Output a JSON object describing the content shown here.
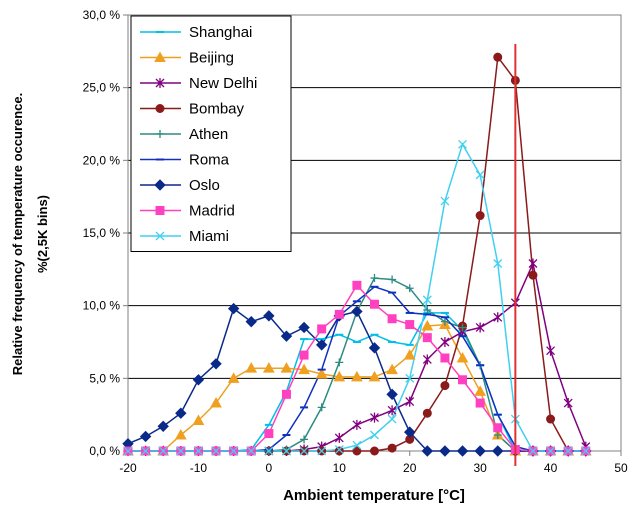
{
  "chart_data": {
    "type": "line",
    "xlabel": "Ambient temperature [°C]",
    "ylabel_line1": "Relative frequency of temperature occurence.",
    "ylabel_line2": "%(2,5K bins)",
    "xlim": [
      -20,
      50
    ],
    "ylim": [
      0,
      30
    ],
    "x_ticks": [
      "-20",
      "-10",
      "0",
      "10",
      "20",
      "30",
      "40",
      "50"
    ],
    "y_ticks": [
      "0,0 %",
      "5,0 %",
      "10,0 %",
      "15,0 %",
      "20,0 %",
      "25,0 %",
      "30,0 %"
    ],
    "grid": "horizontal",
    "legend_placement": "top-left",
    "reference_line_x": 35,
    "reference_line_color": "#e03030",
    "x": [
      -20,
      -17.5,
      -15,
      -12.5,
      -10,
      -7.5,
      -5,
      -2.5,
      0,
      2.5,
      5,
      7.5,
      10,
      12.5,
      15,
      17.5,
      20,
      22.5,
      25,
      27.5,
      30,
      32.5,
      35,
      37.5,
      40,
      42.5,
      45
    ],
    "series": [
      {
        "name": "Shanghai",
        "color": "#00c0e8",
        "marker": "dash",
        "values": [
          0,
          0,
          0,
          0,
          0,
          0,
          0,
          0.1,
          1.8,
          4.1,
          7.7,
          7.7,
          8.0,
          7.5,
          8.0,
          7.5,
          7.3,
          9.5,
          9.5,
          8.3,
          5.9,
          2.5,
          0,
          0,
          0,
          0,
          0
        ]
      },
      {
        "name": "Beijing",
        "color": "#f0a020",
        "marker": "triangle",
        "values": [
          0,
          0,
          0,
          1.1,
          2.1,
          3.3,
          5.0,
          5.7,
          5.7,
          5.7,
          5.6,
          5.3,
          5.1,
          5.1,
          5.1,
          5.6,
          6.6,
          8.6,
          8.7,
          6.4,
          4.1,
          1.1,
          0,
          0,
          0,
          0,
          0
        ]
      },
      {
        "name": "New Delhi",
        "color": "#800080",
        "marker": "star",
        "values": [
          0,
          0,
          0,
          0,
          0,
          0,
          0,
          0,
          0,
          0,
          0.1,
          0.3,
          0.9,
          1.8,
          2.3,
          2.8,
          3.4,
          6.3,
          7.5,
          8.2,
          8.5,
          9.2,
          10.2,
          12.9,
          6.9,
          3.3,
          0.3
        ]
      },
      {
        "name": "Bombay",
        "color": "#8b1a1a",
        "marker": "circle",
        "values": [
          0,
          0,
          0,
          0,
          0,
          0,
          0,
          0,
          0,
          0,
          0,
          0,
          0,
          0,
          0,
          0.2,
          0.8,
          2.6,
          4.5,
          8.6,
          16.2,
          27.1,
          25.5,
          12.1,
          2.2,
          0,
          0
        ]
      },
      {
        "name": "Athen",
        "color": "#2e8b82",
        "marker": "plus",
        "values": [
          0,
          0,
          0,
          0,
          0,
          0,
          0,
          0,
          0,
          0.1,
          0.8,
          3.0,
          6.1,
          9.6,
          11.9,
          11.8,
          11.2,
          9.7,
          8.9,
          8.5,
          5.9,
          1.1,
          0,
          0,
          0,
          0,
          0
        ]
      },
      {
        "name": "Roma",
        "color": "#1030c0",
        "marker": "dash",
        "values": [
          0,
          0,
          0,
          0,
          0,
          0,
          0,
          0,
          0.1,
          1.1,
          3.0,
          5.6,
          9.3,
          10.3,
          11.3,
          10.9,
          9.5,
          9.4,
          9.2,
          7.9,
          5.9,
          2.5,
          0.3,
          0,
          0,
          0,
          0
        ]
      },
      {
        "name": "Oslo",
        "color": "#0a2a8a",
        "marker": "diamond",
        "values": [
          0.5,
          1.0,
          1.7,
          2.6,
          4.9,
          6.0,
          9.8,
          8.9,
          9.3,
          7.9,
          8.5,
          7.3,
          9.3,
          9.6,
          7.1,
          3.9,
          1.3,
          0,
          0,
          0,
          0,
          0,
          0,
          0,
          0,
          0,
          0
        ]
      },
      {
        "name": "Madrid",
        "color": "#ff40c0",
        "marker": "square",
        "values": [
          0,
          0,
          0,
          0,
          0,
          0,
          0,
          0,
          1.2,
          3.9,
          6.6,
          8.4,
          9.4,
          11.4,
          10.1,
          9.1,
          8.7,
          7.8,
          6.4,
          4.9,
          3.3,
          1.6,
          0.1,
          0,
          0,
          0,
          0
        ]
      },
      {
        "name": "Miami",
        "color": "#40d0f0",
        "marker": "x",
        "values": [
          0,
          0,
          0,
          0,
          0,
          0,
          0,
          0,
          0,
          0,
          0,
          0,
          0.1,
          0.4,
          1.1,
          2.2,
          5.0,
          10.4,
          17.2,
          21.1,
          19.0,
          12.9,
          2.2,
          0,
          0,
          0,
          0
        ]
      }
    ]
  }
}
